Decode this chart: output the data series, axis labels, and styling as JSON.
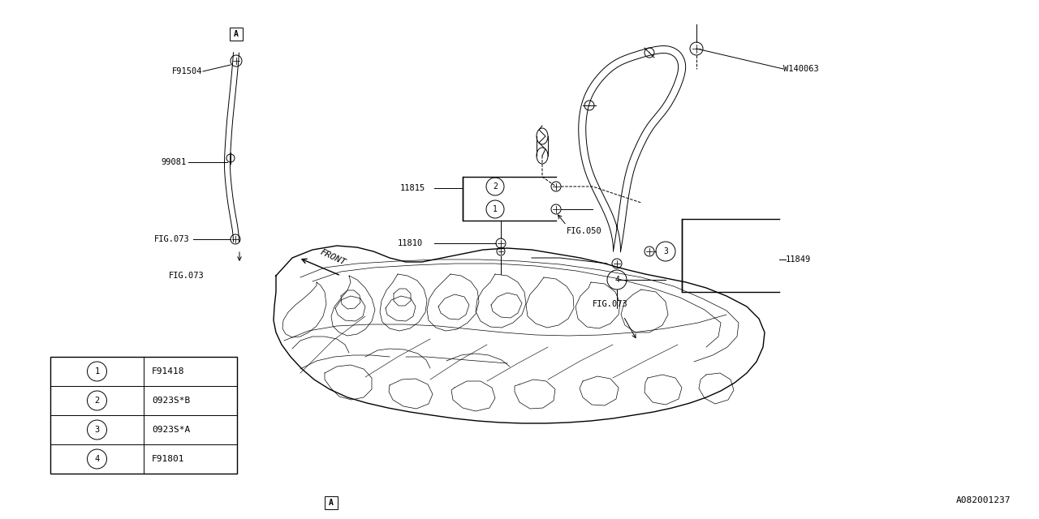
{
  "bg_color": "#ffffff",
  "line_color": "#000000",
  "diagram_id": "A082001237",
  "legend_items": [
    {
      "num": "1",
      "code": "F91418"
    },
    {
      "num": "2",
      "code": "0923S*B"
    },
    {
      "num": "3",
      "code": "0923S*A"
    },
    {
      "num": "4",
      "code": "F91801"
    }
  ],
  "figsize": [
    12.8,
    6.4
  ],
  "dpi": 100
}
